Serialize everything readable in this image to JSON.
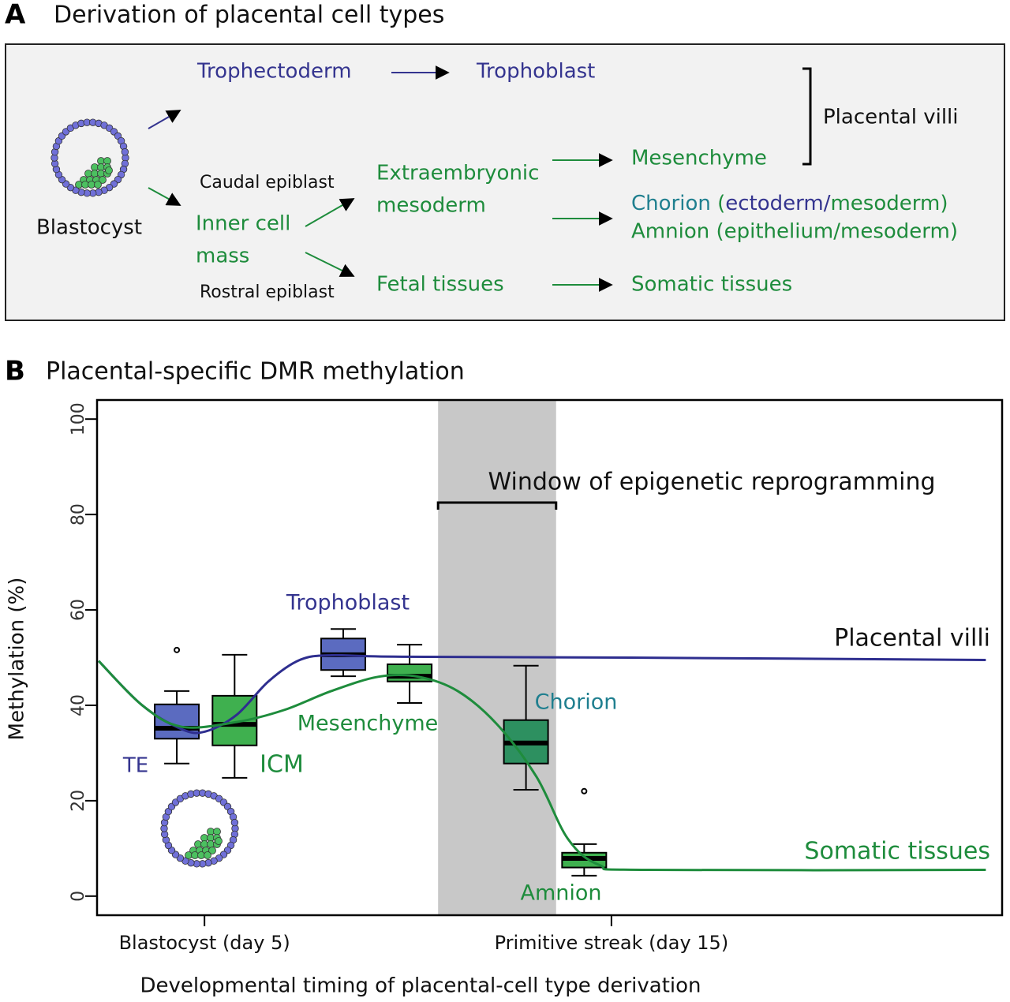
{
  "panel_a": {
    "label": "A",
    "title": "Derivation of placental cell types",
    "nodes": [
      {
        "text": "Trophectoderm",
        "color": "#34348f"
      },
      {
        "text": "Trophoblast",
        "color": "#34348f"
      },
      {
        "text": "Blastocyst",
        "color": "#111111"
      },
      {
        "text": "Caudal epiblast",
        "color": "#111111"
      },
      {
        "lines": [
          "Inner cell",
          "mass"
        ],
        "color": "#1e8c3c"
      },
      {
        "lines": [
          "Extraembryonic",
          "mesoderm"
        ],
        "color": "#1e8c3c"
      },
      {
        "text": "Rostral epiblast",
        "color": "#111111"
      },
      {
        "text": "Fetal tissues",
        "color": "#1e8c3c"
      },
      {
        "text": "Mesenchyme",
        "color": "#1e8c3c"
      },
      {
        "parts": [
          {
            "text": "Chorion",
            "color": "#1f7f8f"
          },
          {
            "text": " (",
            "color": "#1e8c3c"
          },
          {
            "text": "ectoderm/",
            "color": "#34348f"
          },
          {
            "text": "mesoderm)",
            "color": "#1e8c3c"
          }
        ]
      },
      {
        "text": "Amnion (epithelium/mesoderm)",
        "color": "#1e8c3c"
      },
      {
        "text": "Somatic tissues",
        "color": "#1e8c3c"
      },
      {
        "text": "Placental villi",
        "color": "#111111"
      }
    ]
  },
  "chart_data": {
    "type": "box",
    "panel_label": "B",
    "title": "Placental-specific DMR methylation",
    "y_label": "Methylation (%)",
    "x_label": "Developmental timing of placental-cell type derivation",
    "ylim": [
      -4,
      104
    ],
    "yticks": [
      0,
      20,
      40,
      60,
      80,
      100
    ],
    "xlim": [
      2.36,
      24.6
    ],
    "xticks": [
      {
        "value": 5,
        "label": "Blastocyst (day 5)"
      },
      {
        "value": 15,
        "label": "Primitive streak (day 15)"
      }
    ],
    "shaded_region": {
      "label": "Window of epigenetic reprogramming",
      "x": [
        10.74,
        13.64
      ],
      "color": "#c8c8c8"
    },
    "series": [
      {
        "name": "TE",
        "color": "#5b6bc0",
        "label_color": "#34348f",
        "x": 4.32,
        "whisker_low": 27.8,
        "q1": 33,
        "median": 35.2,
        "q3": 40.2,
        "whisker_high": 43,
        "outliers": [
          51.6
        ]
      },
      {
        "name": "ICM",
        "color": "#3fb04f",
        "label_color": "#1e8c3c",
        "x": 5.74,
        "whisker_low": 24.8,
        "q1": 31.6,
        "median": 36,
        "q3": 42,
        "whisker_high": 50.6,
        "outliers": []
      },
      {
        "name": "Trophoblast",
        "color": "#5b6bc0",
        "label_color": "#34348f",
        "x": 8.41,
        "whisker_low": 46.1,
        "q1": 47.4,
        "median": 50.6,
        "q3": 54,
        "whisker_high": 56,
        "outliers": []
      },
      {
        "name": "Mesenchyme",
        "color": "#3fb04f",
        "label_color": "#1e8c3c",
        "x": 10.04,
        "whisker_low": 40.5,
        "q1": 45,
        "median": 46.1,
        "q3": 48.6,
        "whisker_high": 52.7,
        "outliers": []
      },
      {
        "name": "Chorion",
        "color": "#2d9060",
        "label_color": "#1f7f8f",
        "x": 12.9,
        "whisker_low": 22.3,
        "q1": 27.8,
        "median": 32.1,
        "q3": 36.9,
        "whisker_high": 48.3,
        "outliers": []
      },
      {
        "name": "Amnion",
        "color": "#3fb04f",
        "label_color": "#1e8c3c",
        "x": 14.33,
        "whisker_low": 4.3,
        "q1": 6,
        "median": 7.9,
        "q3": 9.1,
        "whisker_high": 10.9,
        "outliers": [
          22
        ]
      }
    ],
    "curves": [
      {
        "name": "Placental villi",
        "color": "#2e2e8f",
        "label_color": "#111111",
        "x": [
          2.4,
          3.47,
          4.44,
          5.02,
          5.79,
          6.57,
          7.34,
          8.12,
          9.67,
          15.48,
          24.2
        ],
        "values": [
          49.3,
          40,
          35,
          34.5,
          38,
          45,
          49.5,
          50.5,
          50.2,
          50,
          49.5
        ]
      },
      {
        "name": "Somatic tissues",
        "color": "#1e8c3c",
        "label_color": "#1e8c3c",
        "x": [
          2.4,
          3.47,
          4.44,
          5.79,
          6.95,
          8.12,
          9.28,
          10.25,
          11.22,
          12.19,
          13.16,
          13.93,
          14.71,
          15.87,
          24.2
        ],
        "values": [
          49.3,
          40,
          35.5,
          36.5,
          39,
          43,
          46,
          46,
          43,
          36,
          25,
          12,
          6.5,
          5.5,
          5.5
        ]
      }
    ]
  }
}
